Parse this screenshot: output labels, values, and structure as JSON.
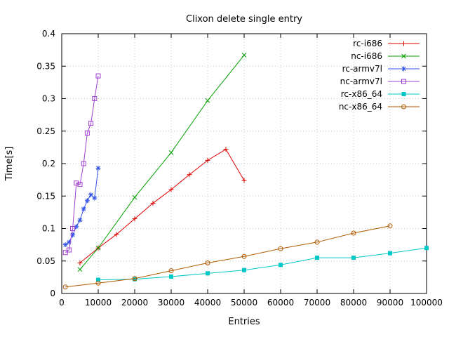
{
  "chart_data": {
    "type": "line",
    "title": "Clixon delete single entry",
    "xlabel": "Entries",
    "ylabel": "Time[s]",
    "xlim": [
      0,
      100000
    ],
    "ylim": [
      0,
      0.4
    ],
    "xticks": [
      0,
      10000,
      20000,
      30000,
      40000,
      50000,
      60000,
      70000,
      80000,
      90000,
      100000
    ],
    "yticks": [
      0,
      0.05,
      0.1,
      0.15,
      0.2,
      0.25,
      0.3,
      0.35,
      0.4
    ],
    "grid": true,
    "grid_color": "#c8c8c8",
    "legend_position": "top-right-inside",
    "series": [
      {
        "name": "rc-i686",
        "color": "#e00000",
        "marker": "plus",
        "x": [
          5000,
          10000,
          15000,
          20000,
          25000,
          30000,
          35000,
          40000,
          45000,
          50000
        ],
        "y": [
          0.047,
          0.07,
          0.091,
          0.115,
          0.139,
          0.16,
          0.183,
          0.205,
          0.222,
          0.174
        ]
      },
      {
        "name": "nc-i686",
        "color": "#00a000",
        "marker": "cross",
        "x": [
          5000,
          10000,
          20000,
          30000,
          40000,
          50000
        ],
        "y": [
          0.037,
          0.07,
          0.148,
          0.217,
          0.297,
          0.367
        ]
      },
      {
        "name": "rc-armv7l",
        "color": "#3050e8",
        "marker": "asterisk",
        "x": [
          1000,
          2000,
          3000,
          4000,
          5000,
          6000,
          7000,
          8000,
          9000,
          10000
        ],
        "y": [
          0.075,
          0.079,
          0.09,
          0.103,
          0.113,
          0.13,
          0.143,
          0.152,
          0.147,
          0.193
        ]
      },
      {
        "name": "nc-armv7l",
        "color": "#a040d0",
        "marker": "square-open",
        "x": [
          1000,
          2000,
          3000,
          4000,
          5000,
          6000,
          7000,
          8000,
          9000,
          10000
        ],
        "y": [
          0.063,
          0.067,
          0.1,
          0.17,
          0.168,
          0.2,
          0.247,
          0.262,
          0.3,
          0.335
        ]
      },
      {
        "name": "rc-x86_64",
        "color": "#00c8c8",
        "marker": "square-filled",
        "x": [
          10000,
          20000,
          30000,
          40000,
          50000,
          60000,
          70000,
          80000,
          90000,
          100000
        ],
        "y": [
          0.021,
          0.022,
          0.026,
          0.031,
          0.036,
          0.044,
          0.055,
          0.055,
          0.062,
          0.07
        ]
      },
      {
        "name": "nc-x86_64",
        "color": "#b05a00",
        "marker": "circle-open",
        "x": [
          1000,
          10000,
          20000,
          30000,
          40000,
          50000,
          60000,
          70000,
          80000,
          90000
        ],
        "y": [
          0.01,
          0.016,
          0.023,
          0.035,
          0.047,
          0.057,
          0.069,
          0.079,
          0.093,
          0.104
        ]
      }
    ]
  }
}
